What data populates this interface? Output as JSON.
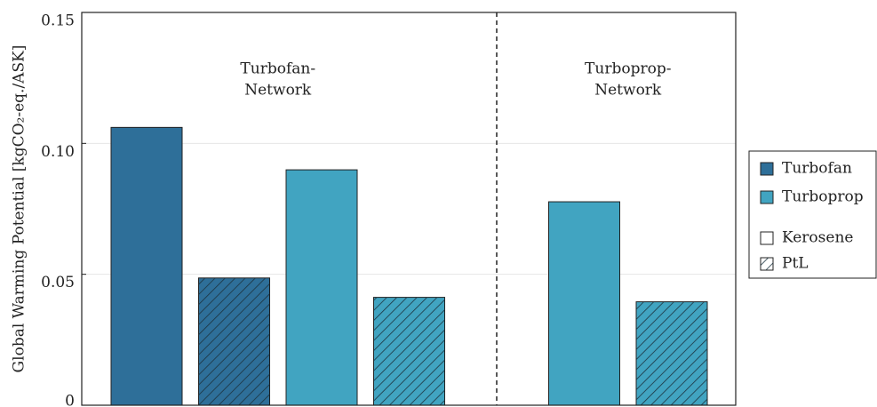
{
  "chart_data": {
    "type": "bar",
    "ylabel": "Global Warming Potential [kgCO₂-eq./ASK]",
    "categories": [
      null,
      null,
      null,
      null,
      null,
      null
    ],
    "series": [
      {
        "name": "Turbofan",
        "color": "#2e6f99",
        "values": [
          0.1061,
          0.0486,
          null,
          null,
          null,
          null
        ]
      },
      {
        "name": "Turboprop",
        "color": "#41a4c1",
        "values": [
          null,
          null,
          0.0899,
          0.0412,
          0.0777,
          0.0395
        ]
      }
    ],
    "hatched": [
      false,
      true,
      false,
      true,
      false,
      true
    ],
    "hatch_legend": [
      {
        "name": "Kerosene",
        "hatch": false
      },
      {
        "name": "PtL",
        "hatch": true
      }
    ],
    "annotations": [
      {
        "lines": [
          "Turbofan-",
          "Network"
        ]
      },
      {
        "lines": [
          "Turboprop-",
          "Network"
        ]
      }
    ],
    "ylim": [
      0,
      0.15
    ],
    "yticks": [
      0,
      {
        "value": 0.05,
        "label": "0.05"
      },
      {
        "value": 0.1,
        "label": "0.10"
      },
      0.15
    ],
    "grid": true
  }
}
